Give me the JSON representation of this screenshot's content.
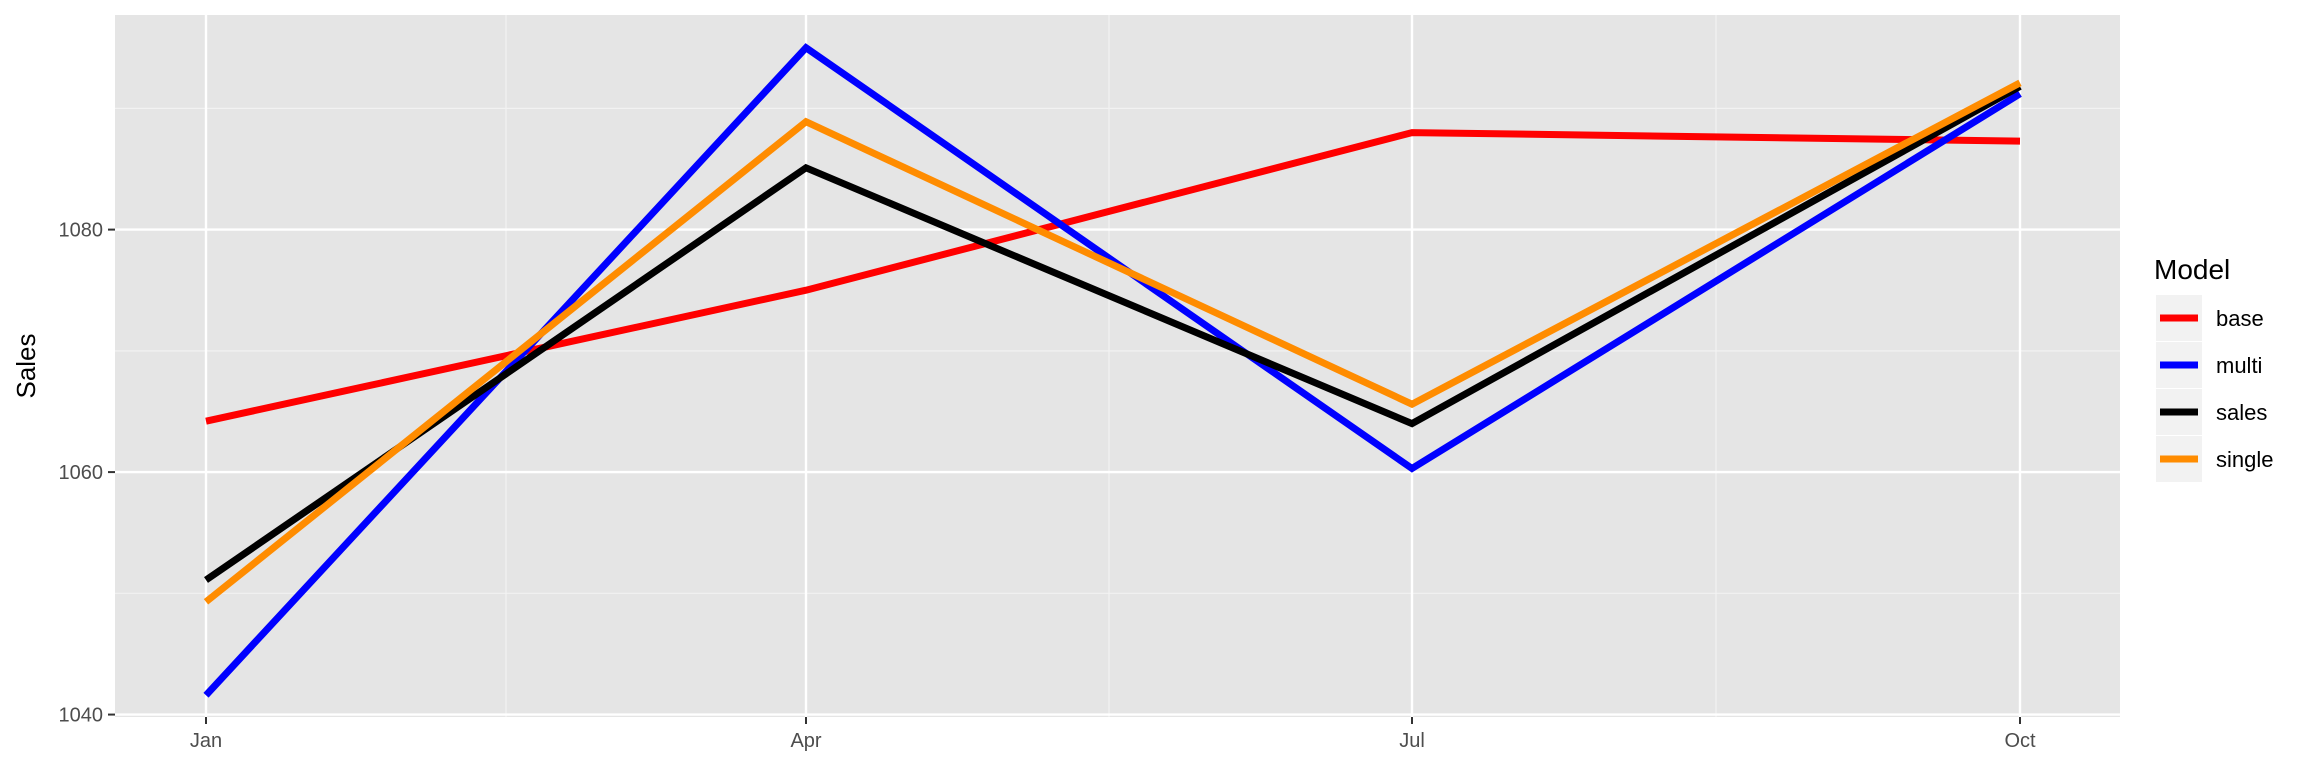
{
  "chart_data": {
    "type": "line",
    "categories": [
      "Jan",
      "Apr",
      "Jul",
      "Oct"
    ],
    "xlabel": "",
    "ylabel": "Sales",
    "ylim": [
      1039.8,
      1097.7
    ],
    "yticks": [
      1040,
      1060,
      1080
    ],
    "grid": true,
    "legend": {
      "title": "Model",
      "position": "right"
    },
    "series": [
      {
        "name": "base",
        "color": "#ff0000",
        "values": [
          1064.2,
          1075.0,
          1088.0,
          1087.3
        ]
      },
      {
        "name": "multi",
        "color": "#0000ff",
        "values": [
          1041.6,
          1095.0,
          1060.3,
          1091.2
        ]
      },
      {
        "name": "sales",
        "color": "#000000",
        "values": [
          1051.1,
          1085.1,
          1064.0,
          1091.8
        ]
      },
      {
        "name": "single",
        "color": "#ff8c00",
        "values": [
          1049.3,
          1088.9,
          1065.6,
          1092.1
        ]
      }
    ]
  }
}
